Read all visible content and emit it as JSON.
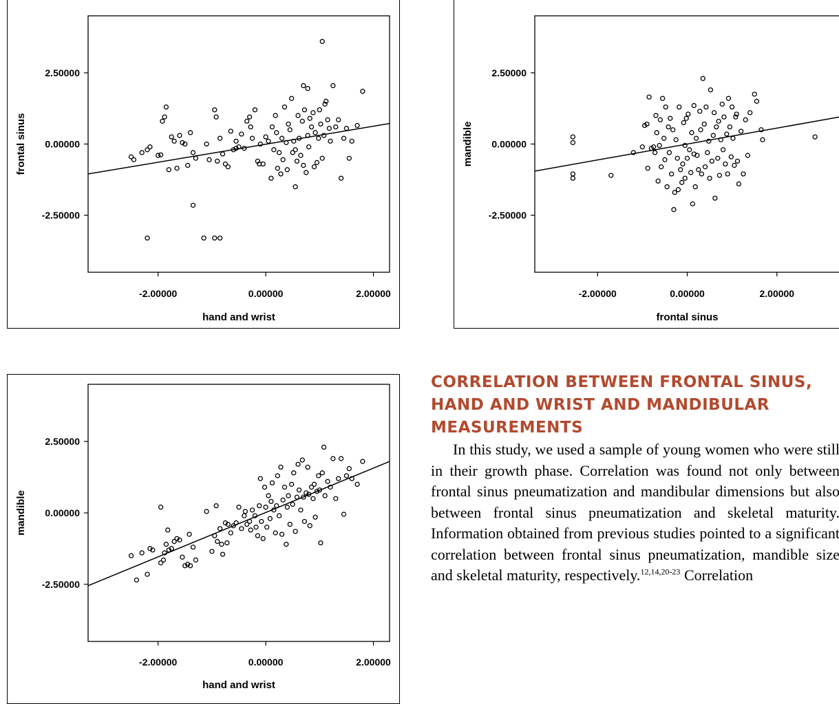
{
  "chart_data": [
    {
      "type": "scatter",
      "xlabel": "hand and wrist",
      "ylabel": "frontal sinus",
      "xticks": [
        "-2.00000",
        "0.00000",
        "2.00000"
      ],
      "yticks": [
        "2.50000",
        "0.00000",
        "-2.50000"
      ],
      "xlim": [
        -3.3,
        2.3
      ],
      "ylim": [
        -4.5,
        4.5
      ],
      "regression": {
        "x": [
          -3.3,
          2.3
        ],
        "y": [
          -1.05,
          0.72
        ]
      },
      "points": [
        [
          -2.5,
          -0.45
        ],
        [
          -2.45,
          -0.55
        ],
        [
          -2.3,
          -0.3
        ],
        [
          -2.2,
          -0.2
        ],
        [
          -2.15,
          -0.1
        ],
        [
          -2.0,
          -0.4
        ],
        [
          -1.95,
          -0.38
        ],
        [
          -1.92,
          0.8
        ],
        [
          -1.88,
          0.95
        ],
        [
          -1.85,
          1.3
        ],
        [
          -1.8,
          -0.9
        ],
        [
          -1.75,
          0.25
        ],
        [
          -1.7,
          0.1
        ],
        [
          -1.65,
          -0.85
        ],
        [
          -1.6,
          0.3
        ],
        [
          -1.55,
          0.05
        ],
        [
          -1.5,
          0.0
        ],
        [
          -1.45,
          -0.75
        ],
        [
          -1.4,
          0.4
        ],
        [
          -1.35,
          -0.3
        ],
        [
          -1.3,
          -0.5
        ],
        [
          -1.1,
          0.0
        ],
        [
          -1.05,
          -0.55
        ],
        [
          -0.95,
          1.2
        ],
        [
          -0.92,
          0.95
        ],
        [
          -0.9,
          -0.6
        ],
        [
          -0.85,
          0.2
        ],
        [
          -0.8,
          -0.35
        ],
        [
          -0.75,
          -0.7
        ],
        [
          -0.7,
          -0.8
        ],
        [
          -0.65,
          0.45
        ],
        [
          -0.6,
          -0.2
        ],
        [
          -0.55,
          0.1
        ],
        [
          -0.5,
          -0.1
        ],
        [
          -0.45,
          0.35
        ],
        [
          -0.4,
          -0.15
        ],
        [
          -0.35,
          0.8
        ],
        [
          -0.3,
          0.95
        ],
        [
          -0.28,
          0.6
        ],
        [
          -0.25,
          0.2
        ],
        [
          -0.2,
          1.2
        ],
        [
          -0.15,
          -0.6
        ],
        [
          -0.12,
          -0.7
        ],
        [
          -0.1,
          0.0
        ],
        [
          -0.05,
          -0.7
        ],
        [
          0.0,
          0.25
        ],
        [
          0.05,
          0.1
        ],
        [
          0.1,
          -1.2
        ],
        [
          0.12,
          0.6
        ],
        [
          0.15,
          -0.2
        ],
        [
          0.18,
          1.0
        ],
        [
          0.2,
          0.4
        ],
        [
          0.22,
          -0.85
        ],
        [
          0.25,
          -0.3
        ],
        [
          0.28,
          -1.05
        ],
        [
          0.3,
          0.2
        ],
        [
          0.32,
          -0.55
        ],
        [
          0.35,
          1.3
        ],
        [
          0.38,
          0.05
        ],
        [
          0.4,
          -0.9
        ],
        [
          0.42,
          0.7
        ],
        [
          0.45,
          0.5
        ],
        [
          0.48,
          1.6
        ],
        [
          0.5,
          -0.3
        ],
        [
          0.52,
          0.1
        ],
        [
          0.55,
          -0.2
        ],
        [
          0.58,
          -0.6
        ],
        [
          0.6,
          1.0
        ],
        [
          0.62,
          0.2
        ],
        [
          0.65,
          -0.4
        ],
        [
          0.68,
          0.8
        ],
        [
          0.7,
          -0.75
        ],
        [
          0.72,
          1.2
        ],
        [
          0.75,
          -1.0
        ],
        [
          0.78,
          0.3
        ],
        [
          0.8,
          -0.1
        ],
        [
          0.82,
          0.9
        ],
        [
          0.85,
          0.6
        ],
        [
          0.88,
          1.1
        ],
        [
          0.9,
          -0.8
        ],
        [
          0.92,
          0.4
        ],
        [
          0.95,
          -0.65
        ],
        [
          0.98,
          0.2
        ],
        [
          1.0,
          1.2
        ],
        [
          1.02,
          0.7
        ],
        [
          1.05,
          -0.5
        ],
        [
          1.08,
          0.3
        ],
        [
          1.1,
          1.4
        ],
        [
          1.12,
          1.5
        ],
        [
          1.15,
          0.85
        ],
        [
          1.18,
          0.55
        ],
        [
          1.2,
          0.1
        ],
        [
          1.25,
          2.05
        ],
        [
          1.3,
          0.6
        ],
        [
          1.35,
          0.85
        ],
        [
          1.4,
          -1.2
        ],
        [
          1.45,
          0.2
        ],
        [
          1.5,
          0.55
        ],
        [
          1.55,
          -0.5
        ],
        [
          1.6,
          0.1
        ],
        [
          1.7,
          0.65
        ],
        [
          1.8,
          1.85
        ],
        [
          1.05,
          3.6
        ],
        [
          -0.55,
          -0.15
        ],
        [
          -1.35,
          -2.15
        ],
        [
          -2.2,
          -3.3
        ],
        [
          -1.15,
          -3.3
        ],
        [
          -0.95,
          -3.3
        ],
        [
          -0.85,
          -3.3
        ],
        [
          0.55,
          -1.5
        ],
        [
          0.7,
          2.05
        ],
        [
          0.78,
          1.95
        ]
      ]
    },
    {
      "type": "scatter",
      "xlabel": "frontal sinus",
      "ylabel": "mandible",
      "xticks": [
        "-2.00000",
        "0.00000",
        "2.00000"
      ],
      "yticks": [
        "2.50000",
        "0.00000",
        "-2.50000"
      ],
      "xlim": [
        -3.4,
        3.4
      ],
      "ylim": [
        -4.5,
        4.5
      ],
      "regression": {
        "x": [
          -3.4,
          3.4
        ],
        "y": [
          -0.95,
          0.95
        ]
      },
      "points": [
        [
          -2.55,
          0.25
        ],
        [
          -2.55,
          0.05
        ],
        [
          -2.55,
          -1.05
        ],
        [
          -2.55,
          -1.2
        ],
        [
          -1.7,
          -1.1
        ],
        [
          -1.2,
          -0.3
        ],
        [
          -1.0,
          -0.1
        ],
        [
          -0.95,
          0.65
        ],
        [
          -0.9,
          0.7
        ],
        [
          -0.88,
          -0.85
        ],
        [
          -0.85,
          1.65
        ],
        [
          -0.8,
          -0.15
        ],
        [
          -0.75,
          -0.1
        ],
        [
          -0.72,
          -0.3
        ],
        [
          -0.7,
          1.0
        ],
        [
          -0.68,
          0.4
        ],
        [
          -0.65,
          -1.3
        ],
        [
          -0.62,
          -0.05
        ],
        [
          -0.6,
          0.85
        ],
        [
          -0.58,
          -0.8
        ],
        [
          -0.55,
          1.6
        ],
        [
          -0.52,
          0.2
        ],
        [
          -0.5,
          -0.55
        ],
        [
          -0.48,
          1.3
        ],
        [
          -0.45,
          -1.5
        ],
        [
          -0.42,
          0.6
        ],
        [
          -0.4,
          -0.3
        ],
        [
          -0.38,
          0.9
        ],
        [
          -0.35,
          -1.05
        ],
        [
          -0.32,
          0.5
        ],
        [
          -0.3,
          -2.3
        ],
        [
          -0.28,
          -1.7
        ],
        [
          -0.25,
          0.15
        ],
        [
          -0.22,
          -0.5
        ],
        [
          -0.2,
          -1.6
        ],
        [
          -0.18,
          1.3
        ],
        [
          -0.15,
          -0.9
        ],
        [
          -0.12,
          -1.35
        ],
        [
          -0.1,
          -0.7
        ],
        [
          -0.08,
          0.75
        ],
        [
          -0.05,
          -1.2
        ],
        [
          -0.02,
          0.9
        ],
        [
          0.0,
          -0.5
        ],
        [
          0.02,
          1.05
        ],
        [
          0.05,
          -0.2
        ],
        [
          0.08,
          -1.0
        ],
        [
          0.1,
          0.4
        ],
        [
          0.12,
          -2.1
        ],
        [
          0.15,
          1.35
        ],
        [
          0.18,
          -1.5
        ],
        [
          0.2,
          0.2
        ],
        [
          0.22,
          -0.4
        ],
        [
          0.25,
          -0.9
        ],
        [
          0.28,
          1.15
        ],
        [
          0.3,
          0.5
        ],
        [
          0.32,
          -1.05
        ],
        [
          0.35,
          2.3
        ],
        [
          0.38,
          0.7
        ],
        [
          0.4,
          -0.8
        ],
        [
          0.42,
          1.3
        ],
        [
          0.45,
          -0.3
        ],
        [
          0.48,
          0.1
        ],
        [
          0.5,
          -1.2
        ],
        [
          0.52,
          1.9
        ],
        [
          0.55,
          -0.6
        ],
        [
          0.58,
          0.3
        ],
        [
          0.6,
          1.1
        ],
        [
          0.62,
          -1.9
        ],
        [
          0.65,
          0.6
        ],
        [
          0.68,
          -0.5
        ],
        [
          0.7,
          0.8
        ],
        [
          0.72,
          -1.1
        ],
        [
          0.75,
          0.15
        ],
        [
          0.78,
          1.4
        ],
        [
          0.8,
          -0.2
        ],
        [
          0.82,
          0.95
        ],
        [
          0.85,
          -0.7
        ],
        [
          0.88,
          0.35
        ],
        [
          0.9,
          -1.05
        ],
        [
          0.92,
          1.6
        ],
        [
          0.95,
          0.6
        ],
        [
          0.98,
          -0.45
        ],
        [
          1.0,
          1.3
        ],
        [
          1.02,
          0.2
        ],
        [
          1.05,
          -0.75
        ],
        [
          1.08,
          0.95
        ],
        [
          1.1,
          1.05
        ],
        [
          1.12,
          -0.6
        ],
        [
          1.15,
          -1.4
        ],
        [
          1.2,
          0.45
        ],
        [
          1.25,
          -1.05
        ],
        [
          1.3,
          0.85
        ],
        [
          1.35,
          -0.4
        ],
        [
          1.4,
          1.1
        ],
        [
          1.5,
          1.75
        ],
        [
          1.55,
          1.5
        ],
        [
          1.65,
          0.5
        ],
        [
          1.68,
          0.15
        ],
        [
          2.85,
          0.25
        ],
        [
          -0.05,
          -0.05
        ],
        [
          0.15,
          -0.35
        ]
      ]
    },
    {
      "type": "scatter",
      "xlabel": "hand and wrist",
      "ylabel": "mandible",
      "xticks": [
        "-2.00000",
        "0.00000",
        "2.00000"
      ],
      "yticks": [
        "2.50000",
        "0.00000",
        "-2.50000"
      ],
      "xlim": [
        -3.3,
        2.3
      ],
      "ylim": [
        -4.5,
        4.5
      ],
      "regression": {
        "x": [
          -3.3,
          2.3
        ],
        "y": [
          -2.55,
          1.8
        ]
      },
      "points": [
        [
          -2.5,
          -1.5
        ],
        [
          -2.4,
          -2.35
        ],
        [
          -2.3,
          -1.4
        ],
        [
          -2.2,
          -2.15
        ],
        [
          -2.15,
          -1.25
        ],
        [
          -2.1,
          -1.3
        ],
        [
          -1.95,
          0.2
        ],
        [
          -1.95,
          -1.75
        ],
        [
          -1.9,
          -1.65
        ],
        [
          -1.88,
          -1.4
        ],
        [
          -1.85,
          -1.1
        ],
        [
          -1.82,
          -0.6
        ],
        [
          -1.8,
          -1.3
        ],
        [
          -1.75,
          -1.25
        ],
        [
          -1.7,
          -1.0
        ],
        [
          -1.65,
          -0.9
        ],
        [
          -1.6,
          -0.95
        ],
        [
          -1.55,
          -1.55
        ],
        [
          -1.5,
          -1.85
        ],
        [
          -1.45,
          -1.8
        ],
        [
          -1.42,
          -0.75
        ],
        [
          -1.4,
          -1.85
        ],
        [
          -1.35,
          -1.2
        ],
        [
          -1.3,
          -1.65
        ],
        [
          -1.1,
          0.05
        ],
        [
          -1.0,
          -1.35
        ],
        [
          -0.95,
          -0.8
        ],
        [
          -0.92,
          0.25
        ],
        [
          -0.9,
          -1.0
        ],
        [
          -0.85,
          -0.55
        ],
        [
          -0.82,
          -1.1
        ],
        [
          -0.8,
          -1.45
        ],
        [
          -0.75,
          -0.35
        ],
        [
          -0.72,
          -1.05
        ],
        [
          -0.7,
          -0.4
        ],
        [
          -0.65,
          -0.7
        ],
        [
          -0.6,
          -0.45
        ],
        [
          -0.55,
          -0.35
        ],
        [
          -0.5,
          0.2
        ],
        [
          -0.45,
          -0.55
        ],
        [
          -0.4,
          -0.1
        ],
        [
          -0.38,
          0.05
        ],
        [
          -0.35,
          -0.4
        ],
        [
          -0.3,
          -0.3
        ],
        [
          -0.28,
          -0.6
        ],
        [
          -0.25,
          0.1
        ],
        [
          -0.2,
          -0.1
        ],
        [
          -0.18,
          -0.5
        ],
        [
          -0.15,
          -0.8
        ],
        [
          -0.12,
          0.25
        ],
        [
          -0.1,
          1.2
        ],
        [
          -0.08,
          -0.3
        ],
        [
          -0.05,
          -0.9
        ],
        [
          -0.02,
          0.9
        ],
        [
          0.0,
          0.2
        ],
        [
          0.02,
          -0.5
        ],
        [
          0.05,
          0.6
        ],
        [
          0.08,
          -0.2
        ],
        [
          0.1,
          0.4
        ],
        [
          0.12,
          1.05
        ],
        [
          0.15,
          0.1
        ],
        [
          0.18,
          -0.7
        ],
        [
          0.2,
          0.25
        ],
        [
          0.22,
          1.3
        ],
        [
          0.25,
          -0.1
        ],
        [
          0.28,
          1.6
        ],
        [
          0.3,
          -0.75
        ],
        [
          0.32,
          0.45
        ],
        [
          0.35,
          0.9
        ],
        [
          0.38,
          -1.1
        ],
        [
          0.4,
          0.2
        ],
        [
          0.42,
          0.6
        ],
        [
          0.45,
          -0.4
        ],
        [
          0.48,
          1.0
        ],
        [
          0.5,
          0.3
        ],
        [
          0.52,
          1.4
        ],
        [
          0.55,
          -0.65
        ],
        [
          0.58,
          0.55
        ],
        [
          0.6,
          1.7
        ],
        [
          0.62,
          0.8
        ],
        [
          0.65,
          0.1
        ],
        [
          0.68,
          1.85
        ],
        [
          0.7,
          0.55
        ],
        [
          0.72,
          -0.3
        ],
        [
          0.75,
          0.7
        ],
        [
          0.78,
          1.6
        ],
        [
          0.8,
          0.65
        ],
        [
          0.82,
          -0.45
        ],
        [
          0.85,
          0.9
        ],
        [
          0.88,
          0.5
        ],
        [
          0.9,
          1.0
        ],
        [
          0.92,
          -0.15
        ],
        [
          0.95,
          0.75
        ],
        [
          0.98,
          1.3
        ],
        [
          1.0,
          0.8
        ],
        [
          1.02,
          -1.05
        ],
        [
          1.05,
          1.4
        ],
        [
          1.08,
          2.3
        ],
        [
          1.1,
          0.6
        ],
        [
          1.15,
          1.1
        ],
        [
          1.2,
          0.9
        ],
        [
          1.25,
          1.9
        ],
        [
          1.3,
          0.5
        ],
        [
          1.35,
          1.2
        ],
        [
          1.4,
          1.9
        ],
        [
          1.45,
          -0.05
        ],
        [
          1.5,
          1.3
        ],
        [
          1.55,
          1.55
        ],
        [
          1.6,
          1.2
        ],
        [
          1.7,
          1.0
        ],
        [
          1.8,
          1.8
        ]
      ]
    }
  ],
  "article": {
    "heading": "CORRELATION BETWEEN FRONTAL SINUS, HAND AND WRIST AND MANDIBULAR MEASUREMENTS",
    "paragraph": "In this study, we used a sample of young women who were still in their growth phase. Correlation was found not only between frontal sinus pneumatization and mandibular dimensions but also between frontal sinus pneumatization and skeletal maturity. Information obtained from previous studies pointed to a significant correlation between frontal sinus pneumatization, mandible size and skeletal maturity, respectively.",
    "citation": "12,14,20-23",
    "paragraph_tail": " Correlation"
  }
}
